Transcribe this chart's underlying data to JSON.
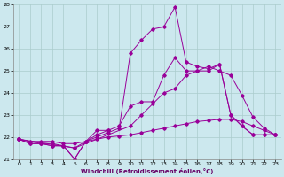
{
  "xlabel": "Windchill (Refroidissement éolien,°C)",
  "ylabel": "",
  "bg_color": "#cce8ee",
  "grid_color": "#aacccc",
  "line_color": "#990099",
  "xlim": [
    -0.5,
    23.5
  ],
  "ylim": [
    21,
    28
  ],
  "xticks": [
    0,
    1,
    2,
    3,
    4,
    5,
    6,
    7,
    8,
    9,
    10,
    11,
    12,
    13,
    14,
    15,
    16,
    17,
    18,
    19,
    20,
    21,
    22,
    23
  ],
  "yticks": [
    21,
    22,
    23,
    24,
    25,
    26,
    27,
    28
  ],
  "series": [
    {
      "x": [
        0,
        1,
        2,
        3,
        4,
        5,
        6,
        7,
        8,
        9,
        10,
        11,
        12,
        13,
        14,
        15,
        16,
        17,
        18,
        19,
        20,
        21,
        22,
        23
      ],
      "y": [
        21.9,
        21.7,
        21.7,
        21.6,
        21.6,
        21.0,
        21.8,
        22.0,
        22.2,
        22.4,
        25.8,
        26.4,
        26.9,
        27.0,
        27.9,
        25.4,
        25.2,
        25.1,
        25.3,
        23.0,
        22.5,
        22.1,
        22.1,
        22.1
      ]
    },
    {
      "x": [
        0,
        1,
        2,
        3,
        4,
        5,
        6,
        7,
        8,
        9,
        10,
        11,
        12,
        13,
        14,
        15,
        16,
        17,
        18,
        19,
        20,
        21,
        22,
        23
      ],
      "y": [
        21.9,
        21.7,
        21.7,
        21.7,
        21.6,
        21.5,
        21.8,
        22.1,
        22.3,
        22.5,
        23.4,
        23.6,
        23.6,
        24.8,
        25.6,
        25.0,
        25.0,
        25.0,
        25.3,
        23.0,
        22.5,
        22.1,
        22.1,
        22.1
      ]
    },
    {
      "x": [
        0,
        5,
        10,
        11,
        12,
        13,
        14,
        15,
        16,
        17,
        18,
        19,
        20,
        21,
        22,
        23
      ],
      "y": [
        21.9,
        21.5,
        22.5,
        23.0,
        23.5,
        24.0,
        24.2,
        24.8,
        25.0,
        25.2,
        25.0,
        24.8,
        23.9,
        22.9,
        22.4,
        22.1
      ]
    },
    {
      "x": [
        0,
        1,
        2,
        3,
        4,
        5,
        6,
        7,
        8,
        9,
        10,
        11,
        12,
        13,
        14,
        15,
        16,
        17,
        18,
        19,
        20,
        21,
        22,
        23
      ],
      "y": [
        21.9,
        21.8,
        21.8,
        21.8,
        21.7,
        21.7,
        21.8,
        21.9,
        22.0,
        22.05,
        22.1,
        22.2,
        22.3,
        22.4,
        22.5,
        22.6,
        22.7,
        22.75,
        22.8,
        22.8,
        22.7,
        22.5,
        22.3,
        22.1
      ]
    },
    {
      "x": [
        0,
        2,
        3,
        4,
        5,
        6,
        7,
        8
      ],
      "y": [
        21.9,
        21.7,
        21.6,
        21.6,
        21.0,
        21.8,
        22.3,
        22.3
      ]
    }
  ]
}
